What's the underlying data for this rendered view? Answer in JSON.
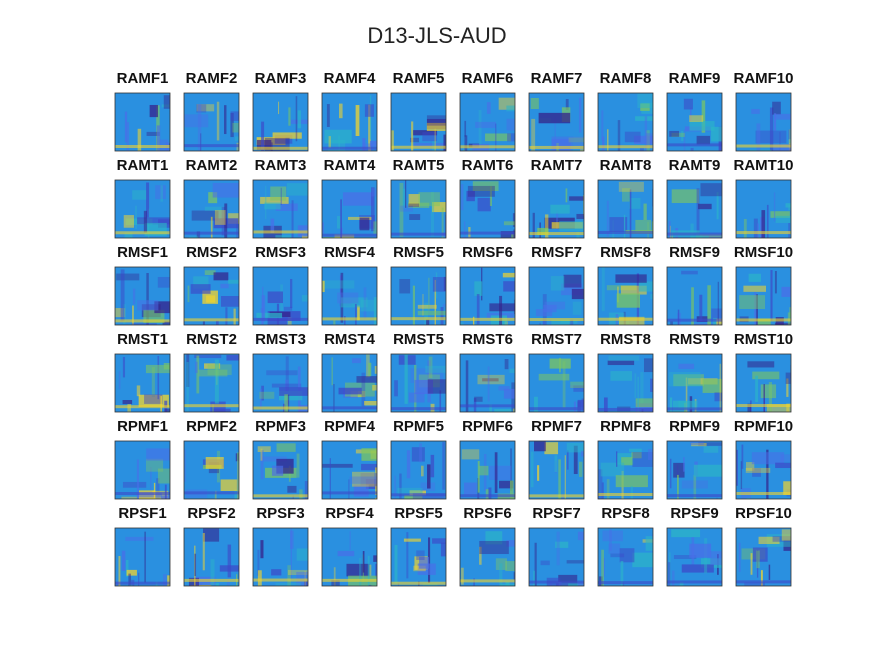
{
  "title": "D13-JLS-AUD",
  "panels": [
    [
      "RAMF1",
      "RAMF2",
      "RAMF3",
      "RAMF4",
      "RAMF5",
      "RAMF6",
      "RAMF7",
      "RAMF8",
      "RAMF9",
      "RAMF10"
    ],
    [
      "RAMT1",
      "RAMT2",
      "RAMT3",
      "RAMT4",
      "RAMT5",
      "RAMT6",
      "RAMT7",
      "RAMT8",
      "RAMT9",
      "RAMT10"
    ],
    [
      "RMSF1",
      "RMSF2",
      "RMSF3",
      "RMSF4",
      "RMSF5",
      "RMSF6",
      "RMSF7",
      "RMSF8",
      "RMSF9",
      "RMSF10"
    ],
    [
      "RMST1",
      "RMST2",
      "RMST3",
      "RMST4",
      "RMST5",
      "RMST6",
      "RMST7",
      "RMST8",
      "RMST9",
      "RMST10"
    ],
    [
      "RPMF1",
      "RPMF2",
      "RPMF3",
      "RPMF4",
      "RPMF5",
      "RPMF6",
      "RPMF7",
      "RPMF8",
      "RPMF9",
      "RPMF10"
    ],
    [
      "RPSF1",
      "RPSF2",
      "RPSF3",
      "RPSF4",
      "RPSF5",
      "RPSF6",
      "RPSF7",
      "RPSF8",
      "RPSF9",
      "RPSF10"
    ]
  ]
}
